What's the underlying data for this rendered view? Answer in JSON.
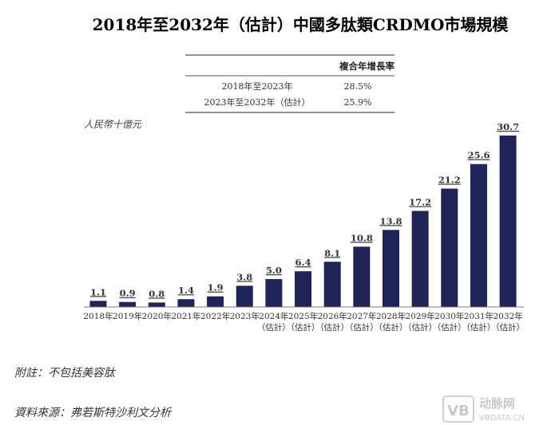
{
  "chart_data": {
    "type": "bar",
    "title": "2018年至2032年（估計）中國多肽類CRDMO市場規模",
    "ylabel": "人民幣十億元",
    "xlabel": "",
    "categories": [
      "2018年",
      "2019年",
      "2020年",
      "2021年",
      "2022年",
      "2023年",
      "2024年",
      "2025年",
      "2026年",
      "2027年",
      "2028年",
      "2029年",
      "2030年",
      "2031年",
      "2032年"
    ],
    "category_sublabels": [
      "",
      "",
      "",
      "",
      "",
      "",
      "（估計）",
      "（估計）",
      "（估計）",
      "（估計）",
      "（估計）",
      "（估計）",
      "（估計）",
      "（估計）",
      "（估計）"
    ],
    "values": [
      1.1,
      0.9,
      0.8,
      1.4,
      1.9,
      3.8,
      5.0,
      6.4,
      8.1,
      10.8,
      13.8,
      17.2,
      21.2,
      25.6,
      30.7
    ],
    "value_labels": [
      "1.1",
      "0.9",
      "0.8",
      "1.4",
      "1.9",
      "3.8",
      "5.0",
      "6.4",
      "8.1",
      "10.8",
      "13.8",
      "17.2",
      "21.2",
      "25.6",
      "30.7"
    ],
    "ylim": [
      0,
      31
    ],
    "grid": false,
    "bar_color": "#1f2355"
  },
  "cagr_table": {
    "header": "複合年增長率",
    "rows": [
      {
        "period": "2018年至2023年",
        "value": "28.5%"
      },
      {
        "period": "2023年至2032年（估計）",
        "value": "25.9%"
      }
    ]
  },
  "footnote": "附註：不包括美容肽",
  "source": "資料來源：弗若斯特沙利文分析",
  "watermark": {
    "logo": "VB",
    "name": "动脉网",
    "url": "VBDATA.CN"
  }
}
